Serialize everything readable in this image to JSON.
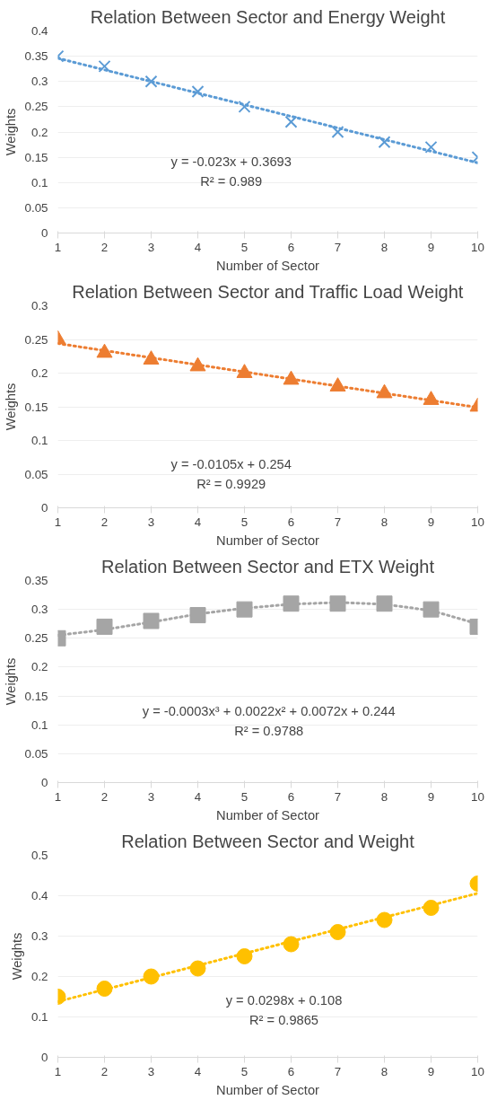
{
  "chart_data": [
    {
      "type": "scatter",
      "title": "Relation Between Sector and Energy Weight",
      "xlabel": "Number of Sector",
      "ylabel": "Weights",
      "x": [
        1,
        2,
        3,
        4,
        5,
        6,
        7,
        8,
        9,
        10
      ],
      "xlim": [
        1,
        10
      ],
      "xticks": [
        1,
        2,
        3,
        4,
        5,
        6,
        7,
        8,
        9,
        10
      ],
      "ylim": [
        0,
        0.4
      ],
      "yticks": [
        0,
        0.05,
        0.1,
        0.15,
        0.2,
        0.25,
        0.3,
        0.35,
        0.4
      ],
      "grid": "y",
      "series": [
        {
          "marker": "cross",
          "color": "#5b9bd5",
          "values": [
            0.35,
            0.33,
            0.3,
            0.28,
            0.25,
            0.22,
            0.2,
            0.18,
            0.17,
            0.15
          ]
        },
        {
          "type": "line",
          "line_style": "dotted",
          "color": "#5b9bd5",
          "x": [
            1,
            10
          ],
          "values": [
            0.346,
            0.139
          ]
        }
      ],
      "annotations": [
        "y = -0.023x + 0.3693",
        "R² = 0.989"
      ]
    },
    {
      "type": "scatter",
      "title": "Relation Between Sector and Traffic Load Weight",
      "xlabel": "Number of Sector",
      "ylabel": "Weights",
      "x": [
        1,
        2,
        3,
        4,
        5,
        6,
        7,
        8,
        9,
        10
      ],
      "xlim": [
        1,
        10
      ],
      "xticks": [
        1,
        2,
        3,
        4,
        5,
        6,
        7,
        8,
        9,
        10
      ],
      "ylim": [
        0,
        0.3
      ],
      "yticks": [
        0,
        0.05,
        0.1,
        0.15,
        0.2,
        0.25,
        0.3
      ],
      "grid": "y",
      "series": [
        {
          "marker": "triangle",
          "color": "#ed7d31",
          "values": [
            0.25,
            0.23,
            0.22,
            0.21,
            0.2,
            0.19,
            0.18,
            0.17,
            0.16,
            0.15
          ]
        },
        {
          "type": "line",
          "line_style": "dotted",
          "color": "#ed7d31",
          "x": [
            1,
            10
          ],
          "values": [
            0.244,
            0.149
          ]
        }
      ],
      "annotations": [
        "y = -0.0105x + 0.254",
        "R² = 0.9929"
      ]
    },
    {
      "type": "scatter",
      "title": "Relation Between Sector and ETX Weight",
      "xlabel": "Number of Sector",
      "ylabel": "Weights",
      "x": [
        1,
        2,
        3,
        4,
        5,
        6,
        7,
        8,
        9,
        10
      ],
      "xlim": [
        1,
        10
      ],
      "xticks": [
        1,
        2,
        3,
        4,
        5,
        6,
        7,
        8,
        9,
        10
      ],
      "ylim": [
        0,
        0.35
      ],
      "yticks": [
        0,
        0.05,
        0.1,
        0.15,
        0.2,
        0.25,
        0.3,
        0.35
      ],
      "grid": "y",
      "series": [
        {
          "marker": "square",
          "color": "#a5a5a5",
          "values": [
            0.25,
            0.27,
            0.28,
            0.29,
            0.3,
            0.31,
            0.31,
            0.31,
            0.3,
            0.27
          ]
        },
        {
          "type": "line",
          "line_style": "dotted",
          "color": "#a5a5a5",
          "x": [
            1,
            2,
            3,
            4,
            5,
            6,
            7,
            8,
            9,
            10
          ],
          "values": [
            0.255,
            0.265,
            0.278,
            0.292,
            0.302,
            0.309,
            0.312,
            0.309,
            0.298,
            0.275
          ]
        }
      ],
      "annotations": [
        "y = -0.0003x³ + 0.0022x² + 0.0072x + 0.244",
        "R² = 0.9788"
      ]
    },
    {
      "type": "scatter",
      "title": "Relation Between Sector and Weight",
      "xlabel": "Number of Sector",
      "ylabel": "Weights",
      "x": [
        1,
        2,
        3,
        4,
        5,
        6,
        7,
        8,
        9,
        10
      ],
      "xlim": [
        1,
        10
      ],
      "xticks": [
        1,
        2,
        3,
        4,
        5,
        6,
        7,
        8,
        9,
        10
      ],
      "ylim": [
        0,
        0.5
      ],
      "yticks": [
        0,
        0.1,
        0.2,
        0.3,
        0.4,
        0.5
      ],
      "grid": "y",
      "series": [
        {
          "marker": "circle",
          "color": "#ffc000",
          "values": [
            0.15,
            0.17,
            0.2,
            0.22,
            0.25,
            0.28,
            0.31,
            0.34,
            0.37,
            0.43
          ]
        },
        {
          "type": "line",
          "line_style": "dotted",
          "color": "#ffc000",
          "x": [
            1,
            10
          ],
          "values": [
            0.138,
            0.406
          ]
        }
      ],
      "annotations": [
        "y = 0.0298x + 0.108",
        "R² = 0.9865"
      ]
    }
  ]
}
